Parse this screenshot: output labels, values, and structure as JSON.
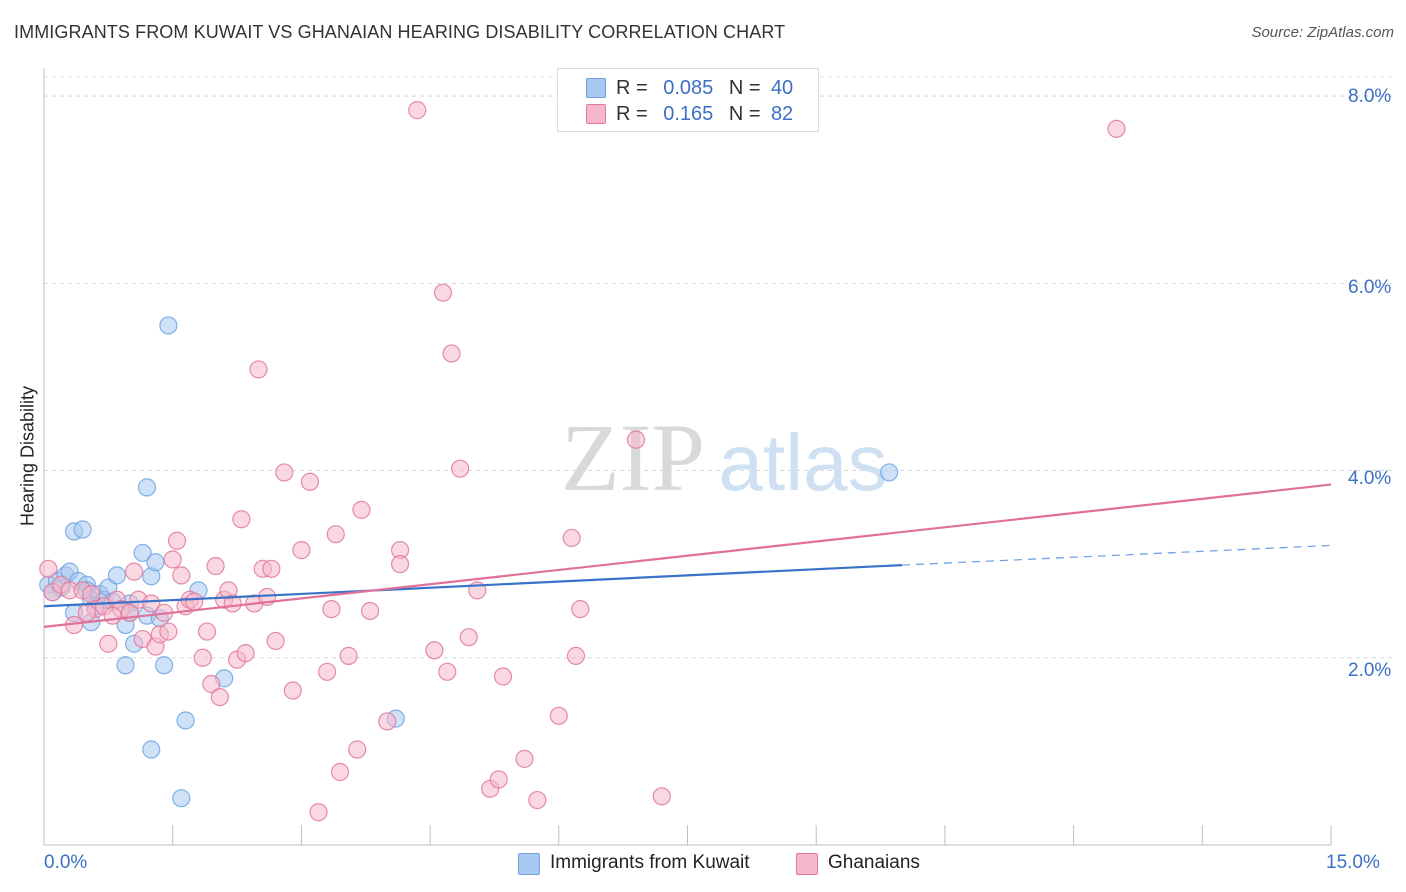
{
  "header": {
    "title": "IMMIGRANTS FROM KUWAIT VS GHANAIAN HEARING DISABILITY CORRELATION CHART",
    "source": "Source: ZipAtlas.com"
  },
  "watermark": {
    "zip": "ZIP",
    "atlas": "atlas"
  },
  "legend": {
    "rows": [
      {
        "r_label": "R =",
        "r_value": "0.085",
        "n_label": "N =",
        "n_value": "40",
        "color": "#a8c8f0"
      },
      {
        "r_label": "R =",
        "r_value": "0.165",
        "n_label": "N =",
        "n_value": "82",
        "color": "#f5b8cb"
      }
    ]
  },
  "bottom_legend": [
    {
      "label": "Immigrants from Kuwait",
      "color": "#a8c8f0"
    },
    {
      "label": "Ghanaians",
      "color": "#f5b8cb"
    }
  ],
  "axes": {
    "ylabel": "Hearing Disability",
    "x_ticks": [
      "0.0%",
      "15.0%"
    ],
    "y_ticks": [
      "2.0%",
      "4.0%",
      "6.0%",
      "8.0%"
    ]
  },
  "chart_data": {
    "type": "scatter",
    "title": "IMMIGRANTS FROM KUWAIT VS GHANAIAN HEARING DISABILITY CORRELATION CHART",
    "xlabel": "",
    "ylabel": "Hearing Disability",
    "xlim": [
      0,
      15
    ],
    "ylim": [
      0,
      8.3
    ],
    "grid": true,
    "legend_position": "top-center",
    "series": [
      {
        "name": "Immigrants from Kuwait",
        "color": "#6fa3e3",
        "fill": "#a8c8f0",
        "trend": {
          "x": [
            0,
            10.0
          ],
          "y": [
            2.55,
            2.99
          ],
          "extended_dashed_to": [
            15.0,
            3.2
          ]
        },
        "points": [
          [
            0.05,
            2.78
          ],
          [
            0.1,
            2.7
          ],
          [
            0.15,
            2.82
          ],
          [
            0.2,
            2.75
          ],
          [
            0.25,
            2.88
          ],
          [
            0.3,
            2.92
          ],
          [
            0.35,
            2.48
          ],
          [
            0.35,
            3.35
          ],
          [
            0.4,
            2.82
          ],
          [
            0.45,
            3.37
          ],
          [
            0.5,
            2.78
          ],
          [
            0.5,
            2.72
          ],
          [
            0.55,
            2.62
          ],
          [
            0.55,
            2.38
          ],
          [
            0.65,
            2.68
          ],
          [
            0.7,
            2.62
          ],
          [
            0.75,
            2.75
          ],
          [
            0.8,
            2.6
          ],
          [
            0.85,
            2.88
          ],
          [
            0.95,
            2.35
          ],
          [
            0.95,
            1.92
          ],
          [
            1.0,
            2.58
          ],
          [
            1.0,
            2.48
          ],
          [
            1.05,
            2.15
          ],
          [
            1.15,
            3.12
          ],
          [
            1.2,
            3.82
          ],
          [
            1.2,
            2.45
          ],
          [
            1.25,
            2.87
          ],
          [
            1.25,
            1.02
          ],
          [
            1.3,
            3.02
          ],
          [
            1.35,
            2.42
          ],
          [
            1.4,
            1.92
          ],
          [
            1.45,
            5.55
          ],
          [
            1.6,
            0.5
          ],
          [
            1.65,
            1.33
          ],
          [
            1.8,
            2.72
          ],
          [
            2.1,
            1.78
          ],
          [
            4.1,
            1.35
          ],
          [
            9.85,
            3.98
          ],
          [
            0.6,
            2.55
          ]
        ]
      },
      {
        "name": "Ghanaians",
        "color": "#e0789a",
        "fill": "#f5b8cb",
        "trend": {
          "x": [
            0,
            15.0
          ],
          "y": [
            2.33,
            3.85
          ]
        },
        "points": [
          [
            0.05,
            2.95
          ],
          [
            0.1,
            2.7
          ],
          [
            0.2,
            2.78
          ],
          [
            0.3,
            2.72
          ],
          [
            0.35,
            2.35
          ],
          [
            0.45,
            2.72
          ],
          [
            0.55,
            2.68
          ],
          [
            0.6,
            2.52
          ],
          [
            0.7,
            2.55
          ],
          [
            0.75,
            2.15
          ],
          [
            0.85,
            2.62
          ],
          [
            0.9,
            2.52
          ],
          [
            1.0,
            2.48
          ],
          [
            1.05,
            2.92
          ],
          [
            1.1,
            2.62
          ],
          [
            1.15,
            2.2
          ],
          [
            1.25,
            2.58
          ],
          [
            1.3,
            2.12
          ],
          [
            1.35,
            2.25
          ],
          [
            1.4,
            2.48
          ],
          [
            1.45,
            2.28
          ],
          [
            1.5,
            3.05
          ],
          [
            1.55,
            3.25
          ],
          [
            1.6,
            2.88
          ],
          [
            1.65,
            2.55
          ],
          [
            1.7,
            2.62
          ],
          [
            1.85,
            2.0
          ],
          [
            1.9,
            2.28
          ],
          [
            1.95,
            1.72
          ],
          [
            2.0,
            2.98
          ],
          [
            2.05,
            1.58
          ],
          [
            2.1,
            2.62
          ],
          [
            2.15,
            2.72
          ],
          [
            2.2,
            2.58
          ],
          [
            2.25,
            1.98
          ],
          [
            2.3,
            3.48
          ],
          [
            2.35,
            2.05
          ],
          [
            2.45,
            2.58
          ],
          [
            2.5,
            5.08
          ],
          [
            2.55,
            2.95
          ],
          [
            2.6,
            2.65
          ],
          [
            2.65,
            2.95
          ],
          [
            2.7,
            2.18
          ],
          [
            2.8,
            3.98
          ],
          [
            2.9,
            1.65
          ],
          [
            3.0,
            3.15
          ],
          [
            3.1,
            3.88
          ],
          [
            3.2,
            0.35
          ],
          [
            3.3,
            1.85
          ],
          [
            3.35,
            2.52
          ],
          [
            3.4,
            3.32
          ],
          [
            3.45,
            0.78
          ],
          [
            3.55,
            2.02
          ],
          [
            3.65,
            1.02
          ],
          [
            3.7,
            3.58
          ],
          [
            3.8,
            2.5
          ],
          [
            4.0,
            1.32
          ],
          [
            4.15,
            3.15
          ],
          [
            4.15,
            3.0
          ],
          [
            4.35,
            7.85
          ],
          [
            4.55,
            2.08
          ],
          [
            4.65,
            5.9
          ],
          [
            4.7,
            1.85
          ],
          [
            4.75,
            5.25
          ],
          [
            4.85,
            4.02
          ],
          [
            4.95,
            2.22
          ],
          [
            5.05,
            2.72
          ],
          [
            5.2,
            0.6
          ],
          [
            5.3,
            0.7
          ],
          [
            5.35,
            1.8
          ],
          [
            5.6,
            0.92
          ],
          [
            5.75,
            0.48
          ],
          [
            6.0,
            1.38
          ],
          [
            6.15,
            3.28
          ],
          [
            6.25,
            2.52
          ],
          [
            6.2,
            2.02
          ],
          [
            6.9,
            4.33
          ],
          [
            7.2,
            0.52
          ],
          [
            12.5,
            7.65
          ],
          [
            0.5,
            2.48
          ],
          [
            1.75,
            2.6
          ],
          [
            0.8,
            2.45
          ]
        ]
      }
    ]
  }
}
